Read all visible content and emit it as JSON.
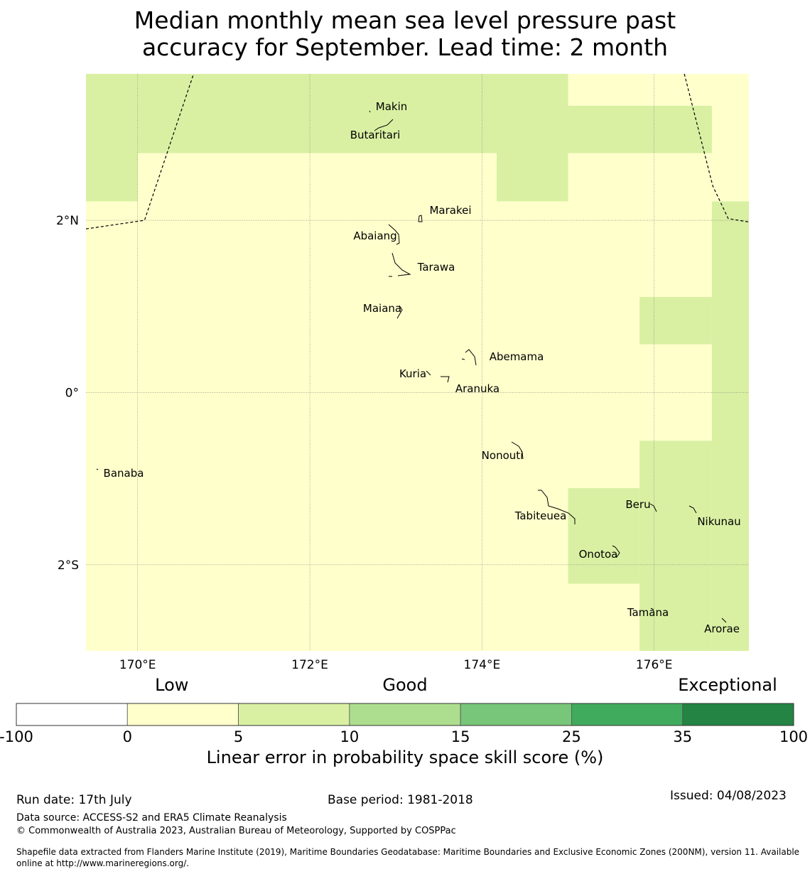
{
  "title_line1": "Median monthly mean sea level pressure past",
  "title_line2": "accuracy for September. Lead time: 2 month",
  "map": {
    "lon_range": [
      169.4,
      177.1
    ],
    "lat_range": [
      -3.0,
      3.7
    ],
    "lon_ticks": [
      {
        "value": 170,
        "label": "170°E"
      },
      {
        "value": 172,
        "label": "172°E"
      },
      {
        "value": 174,
        "label": "174°E"
      },
      {
        "value": 176,
        "label": "176°E"
      }
    ],
    "lat_ticks": [
      {
        "value": 2,
        "label": "2°N"
      },
      {
        "value": 0,
        "label": "0°"
      },
      {
        "value": -2,
        "label": "2°S"
      }
    ],
    "cell_size_deg": 0.833,
    "category_colors": {
      "low": "#ffffcc",
      "good5_10": "#d9f0a3"
    },
    "good_cells": [
      [
        169.4,
        170.0,
        2.22,
        3.7
      ],
      [
        170.0,
        175.0,
        2.78,
        3.7
      ],
      [
        175.0,
        176.67,
        2.78,
        3.33
      ],
      [
        174.17,
        175.0,
        2.22,
        2.78
      ],
      [
        176.67,
        177.1,
        -3.0,
        2.22
      ],
      [
        175.83,
        176.67,
        0.56,
        1.11
      ],
      [
        175.83,
        176.67,
        -3.0,
        -0.56
      ],
      [
        175.0,
        175.83,
        -2.22,
        -1.11
      ]
    ],
    "islands": [
      {
        "name": "Makin",
        "lon": 172.98,
        "lat": 3.33
      },
      {
        "name": "Butaritari",
        "lon": 172.75,
        "lat": 3.0
      },
      {
        "name": "Marakei",
        "lon": 173.28,
        "lat": 2.0
      },
      {
        "name": "Abaiang",
        "lon": 172.93,
        "lat": 1.83
      },
      {
        "name": "Tarawa",
        "lon": 173.0,
        "lat": 1.45
      },
      {
        "name": "Maiana",
        "lon": 173.02,
        "lat": 0.97
      },
      {
        "name": "Abemama",
        "lon": 173.9,
        "lat": 0.4
      },
      {
        "name": "Kuria",
        "lon": 173.4,
        "lat": 0.22
      },
      {
        "name": "Aranuka",
        "lon": 173.6,
        "lat": 0.17
      },
      {
        "name": "Nonouti",
        "lon": 174.4,
        "lat": -0.65
      },
      {
        "name": "Banaba",
        "lon": 169.54,
        "lat": -0.88
      },
      {
        "name": "Tabiteuea",
        "lon": 174.85,
        "lat": -1.35
      },
      {
        "name": "Beru",
        "lon": 175.98,
        "lat": -1.33
      },
      {
        "name": "Nikunau",
        "lon": 176.45,
        "lat": -1.37
      },
      {
        "name": "Onotoa",
        "lon": 175.57,
        "lat": -1.82
      },
      {
        "name": "Tamana",
        "lon": 175.97,
        "lat": -2.5
      },
      {
        "name": "Arorae",
        "lon": 176.83,
        "lat": -2.65
      }
    ]
  },
  "colorbar": {
    "categories": [
      {
        "label": "Low",
        "anchor": 0.2
      },
      {
        "label": "Good",
        "anchor": 0.5
      },
      {
        "label": "Exceptional",
        "anchor": 0.915
      }
    ],
    "bins": [
      {
        "from": "-100",
        "to": "0",
        "color": "#ffffff"
      },
      {
        "from": "0",
        "to": "5",
        "color": "#ffffcc"
      },
      {
        "from": "5",
        "to": "10",
        "color": "#d9f0a3"
      },
      {
        "from": "10",
        "to": "15",
        "color": "#addd8e"
      },
      {
        "from": "15",
        "to": "25",
        "color": "#78c679"
      },
      {
        "from": "25",
        "to": "35",
        "color": "#41ab5d"
      },
      {
        "from": "35",
        "to": "100",
        "color": "#238443"
      }
    ],
    "ticks": [
      "-100",
      "0",
      "5",
      "10",
      "15",
      "25",
      "35",
      "100"
    ],
    "title": "Linear error in probability space skill score (%)"
  },
  "footer": {
    "run_date": "Run date: 17th July",
    "base_period": "Base period: 1981-2018",
    "issued": "Issued: 04/08/2023",
    "data_source": "Data source: ACCESS-S2 and ERA5 Climate Reanalysis",
    "copyright": "© Commonwealth of Australia 2023, Australian Bureau of Meteorology, Supported by COSPPac",
    "shapefile_line1": "Shapefile data extracted from Flanders Marine Institute (2019), Maritime Boundaries Geodatabase: Maritime Boundaries and Exclusive Economic Zones (200NM), version 11. Available",
    "shapefile_line2": "online at http://www.marineregions.org/."
  }
}
